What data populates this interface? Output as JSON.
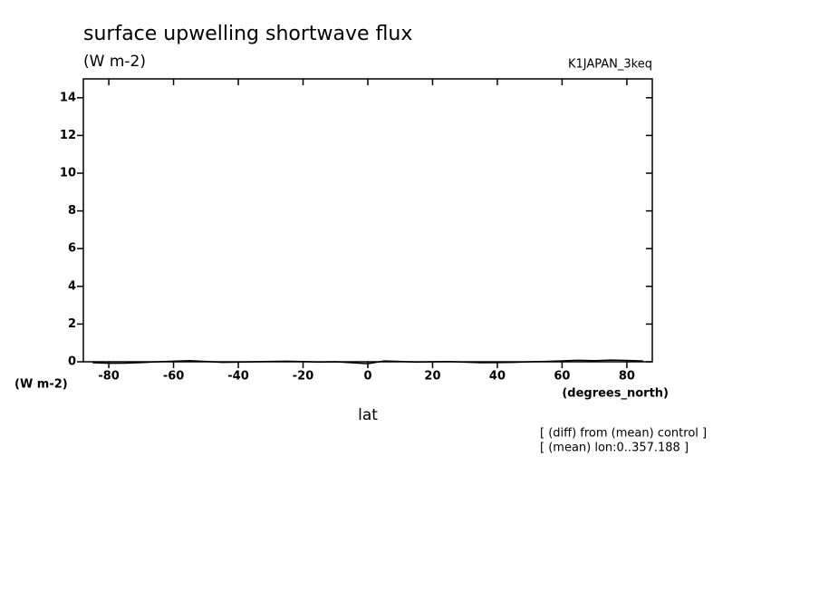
{
  "chart_data": {
    "type": "line",
    "title": "surface upwelling shortwave flux",
    "subtitle": "(W m-2)",
    "run_label": "K1JAPAN_3keq",
    "ylabel": "(W m-2)",
    "xunit": "(degrees_north)",
    "xlabel": "lat",
    "annotations": [
      "[ (diff) from (mean) control ]",
      "[ (mean) lon:0..357.188 ]"
    ],
    "x": [
      -85,
      -80,
      -75,
      -70,
      -65,
      -60,
      -55,
      -50,
      -45,
      -40,
      -35,
      -30,
      -25,
      -20,
      -15,
      -10,
      -5,
      0,
      5,
      10,
      15,
      20,
      25,
      30,
      35,
      40,
      45,
      50,
      55,
      60,
      65,
      70,
      75,
      80,
      85
    ],
    "series": [
      {
        "name": "diff",
        "color": "#000000",
        "values": [
          -0.05,
          -0.08,
          -0.07,
          -0.04,
          0.0,
          0.03,
          0.06,
          0.02,
          -0.03,
          -0.02,
          0.0,
          0.02,
          0.03,
          0.01,
          -0.02,
          0.0,
          -0.05,
          -0.1,
          0.04,
          0.02,
          -0.02,
          0.0,
          0.01,
          -0.02,
          -0.05,
          -0.04,
          -0.03,
          0.0,
          0.02,
          0.05,
          0.08,
          0.06,
          0.09,
          0.07,
          0.04
        ]
      }
    ],
    "xlim": [
      -87.86,
      87.86
    ],
    "xticks": [
      -80,
      -60,
      -40,
      -20,
      0,
      20,
      40,
      60,
      80
    ],
    "ylim": [
      0,
      15
    ],
    "yticks": [
      0,
      2,
      4,
      6,
      8,
      10,
      12,
      14
    ]
  }
}
